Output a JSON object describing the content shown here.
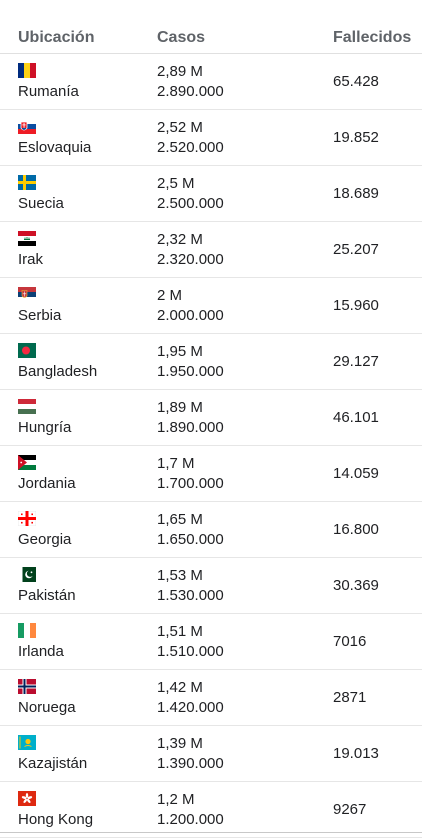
{
  "header": {
    "location": "Ubicación",
    "cases": "Casos",
    "deaths": "Fallecidos"
  },
  "rows": [
    {
      "name": "Rumanía",
      "cases_short": "2,89 M",
      "cases_full": "2.890.000",
      "deaths": "65.428",
      "flag_icon": "romania-flag-icon"
    },
    {
      "name": "Eslovaquia",
      "cases_short": "2,52 M",
      "cases_full": "2.520.000",
      "deaths": "19.852",
      "flag_icon": "slovakia-flag-icon"
    },
    {
      "name": "Suecia",
      "cases_short": "2,5 M",
      "cases_full": "2.500.000",
      "deaths": "18.689",
      "flag_icon": "sweden-flag-icon"
    },
    {
      "name": "Irak",
      "cases_short": "2,32 M",
      "cases_full": "2.320.000",
      "deaths": "25.207",
      "flag_icon": "iraq-flag-icon"
    },
    {
      "name": "Serbia",
      "cases_short": "2 M",
      "cases_full": "2.000.000",
      "deaths": "15.960",
      "flag_icon": "serbia-flag-icon"
    },
    {
      "name": "Bangladesh",
      "cases_short": "1,95 M",
      "cases_full": "1.950.000",
      "deaths": "29.127",
      "flag_icon": "bangladesh-flag-icon"
    },
    {
      "name": "Hungría",
      "cases_short": "1,89 M",
      "cases_full": "1.890.000",
      "deaths": "46.101",
      "flag_icon": "hungary-flag-icon"
    },
    {
      "name": "Jordania",
      "cases_short": "1,7 M",
      "cases_full": "1.700.000",
      "deaths": "14.059",
      "flag_icon": "jordan-flag-icon"
    },
    {
      "name": "Georgia",
      "cases_short": "1,65 M",
      "cases_full": "1.650.000",
      "deaths": "16.800",
      "flag_icon": "georgia-flag-icon"
    },
    {
      "name": "Pakistán",
      "cases_short": "1,53 M",
      "cases_full": "1.530.000",
      "deaths": "30.369",
      "flag_icon": "pakistan-flag-icon"
    },
    {
      "name": "Irlanda",
      "cases_short": "1,51 M",
      "cases_full": "1.510.000",
      "deaths": "7016",
      "flag_icon": "ireland-flag-icon"
    },
    {
      "name": "Noruega",
      "cases_short": "1,42 M",
      "cases_full": "1.420.000",
      "deaths": "2871",
      "flag_icon": "norway-flag-icon"
    },
    {
      "name": "Kazajistán",
      "cases_short": "1,39 M",
      "cases_full": "1.390.000",
      "deaths": "19.013",
      "flag_icon": "kazakhstan-flag-icon"
    },
    {
      "name": "Hong Kong",
      "cases_short": "1,2 M",
      "cases_full": "1.200.000",
      "deaths": "9267",
      "flag_icon": "hong-kong-flag-icon"
    }
  ]
}
